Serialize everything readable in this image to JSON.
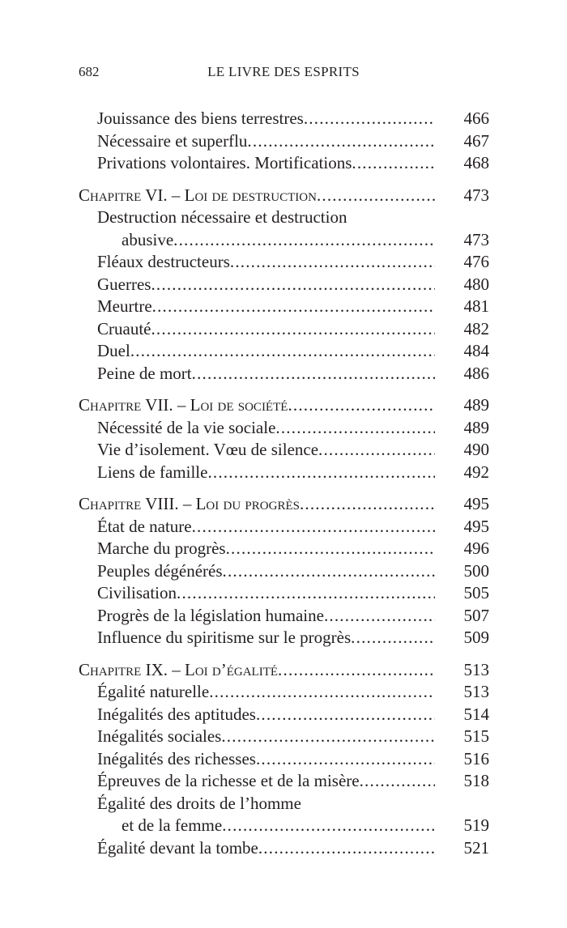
{
  "header": {
    "page_number": "682",
    "running_title": "LE LIVRE DES ESPRITS"
  },
  "toc": [
    {
      "chapter": null,
      "entries": [
        {
          "label": "Jouissance des biens terrestres",
          "page": "466"
        },
        {
          "label": "Nécessaire et superflu",
          "page": "467"
        },
        {
          "label": "Privations volontaires. Mortifications",
          "page": "468"
        }
      ]
    },
    {
      "chapter": {
        "label": "Chapitre VI. – Loi de destruction",
        "page": "473"
      },
      "entries": [
        {
          "label": "Destruction nécessaire et destruction",
          "continuation": "abusive",
          "page": "473"
        },
        {
          "label": "Fléaux destructeurs",
          "page": "476"
        },
        {
          "label": "Guerres",
          "page": "480"
        },
        {
          "label": "Meurtre",
          "page": "481"
        },
        {
          "label": "Cruauté",
          "page": "482"
        },
        {
          "label": "Duel",
          "page": "484"
        },
        {
          "label": "Peine de mort",
          "page": "486"
        }
      ]
    },
    {
      "chapter": {
        "label": "Chapitre VII. – Loi de société",
        "page": "489"
      },
      "entries": [
        {
          "label": "Nécessité de la vie sociale",
          "page": "489"
        },
        {
          "label": "Vie d’isolement. Vœu de silence",
          "page": "490"
        },
        {
          "label": "Liens de famille",
          "page": "492"
        }
      ]
    },
    {
      "chapter": {
        "label": "Chapitre VIII. – Loi du progrès",
        "page": "495"
      },
      "entries": [
        {
          "label": "État de nature",
          "page": "495"
        },
        {
          "label": "Marche du progrès",
          "page": "496"
        },
        {
          "label": "Peuples dégénérés",
          "page": "500"
        },
        {
          "label": "Civilisation",
          "page": "505"
        },
        {
          "label": "Progrès de la législation humaine",
          "page": "507"
        },
        {
          "label": "Influence du spiritisme sur le progrès",
          "page": "509"
        }
      ]
    },
    {
      "chapter": {
        "label": "Chapitre IX. – Loi d’égalité",
        "page": "513"
      },
      "entries": [
        {
          "label": "Égalité naturelle",
          "page": "513"
        },
        {
          "label": "Inégalités des aptitudes",
          "page": "514"
        },
        {
          "label": "Inégalités sociales",
          "page": "515"
        },
        {
          "label": "Inégalités des richesses",
          "page": "516"
        },
        {
          "label": "Épreuves de la richesse et de la misère",
          "page": "518"
        },
        {
          "label": "Égalité des droits de l’homme",
          "continuation": "et de la femme",
          "page": "519"
        },
        {
          "label": "Égalité devant la tombe",
          "page": "521"
        }
      ]
    }
  ]
}
